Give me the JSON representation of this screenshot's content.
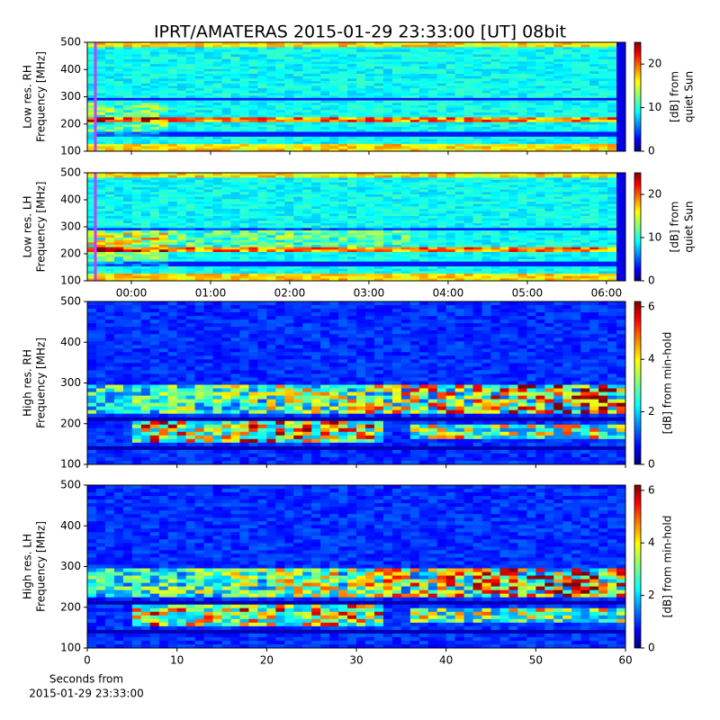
{
  "title": "IPRT/AMATERAS 2015-01-29 23:33:00 [UT]   08bit",
  "chart_data": [
    {
      "type": "heatmap",
      "ylabel": [
        "Low res. RH",
        "Frequency [MHz]"
      ],
      "colorbar_label": [
        "[dB] from",
        "quiet Sun"
      ],
      "xlim": [
        -0.557,
        6.24
      ],
      "xticks": [
        0,
        1,
        2,
        3,
        4,
        5,
        6
      ],
      "xtick_labels": false,
      "ylim": [
        100,
        500
      ],
      "yticks": [
        100,
        200,
        300,
        400,
        500
      ],
      "clim": [
        0,
        25
      ],
      "cticks": [
        0,
        10,
        20
      ],
      "colormap": "jet"
    },
    {
      "type": "heatmap",
      "ylabel": [
        "Low res. LH",
        "Frequency [MHz]"
      ],
      "colorbar_label": [
        "[dB] from",
        "quiet Sun"
      ],
      "xlim": [
        -0.557,
        6.24
      ],
      "xticks": [
        {
          "value": 0,
          "label": "00:00"
        },
        {
          "value": 1,
          "label": "01:00"
        },
        {
          "value": 2,
          "label": "02:00"
        },
        {
          "value": 3,
          "label": "03:00"
        },
        {
          "value": 4,
          "label": "04:00"
        },
        {
          "value": 5,
          "label": "05:00"
        },
        {
          "value": 6,
          "label": "06:00"
        }
      ],
      "xtick_labels": true,
      "ylim": [
        100,
        500
      ],
      "yticks": [
        100,
        200,
        300,
        400,
        500
      ],
      "clim": [
        0,
        25
      ],
      "cticks": [
        0,
        10,
        20
      ],
      "colormap": "jet"
    },
    {
      "type": "heatmap",
      "ylabel": [
        "High res. RH",
        "Frequency [MHz]"
      ],
      "colorbar_label": [
        "[dB] from min-hold"
      ],
      "xlim": [
        0,
        60
      ],
      "xticks": [
        0,
        10,
        20,
        30,
        40,
        50,
        60
      ],
      "xtick_labels": false,
      "ylim": [
        100,
        500
      ],
      "yticks": [
        100,
        200,
        300,
        400,
        500
      ],
      "clim": [
        0,
        6.2
      ],
      "cticks": [
        0,
        2,
        4,
        6
      ],
      "colormap": "jet"
    },
    {
      "type": "heatmap",
      "ylabel": [
        "High res. LH",
        "Frequency [MHz]"
      ],
      "colorbar_label": [
        "[dB] from min-hold"
      ],
      "xlabel": [
        "Seconds from",
        "2015-01-29 23:33:00"
      ],
      "xlim": [
        0,
        60
      ],
      "xticks": [
        0,
        10,
        20,
        30,
        40,
        50,
        60
      ],
      "xtick_labels": true,
      "ylim": [
        100,
        500
      ],
      "yticks": [
        100,
        200,
        300,
        400,
        500
      ],
      "clim": [
        0,
        6.2
      ],
      "cticks": [
        0,
        2,
        4,
        6
      ],
      "colormap": "jet"
    }
  ]
}
